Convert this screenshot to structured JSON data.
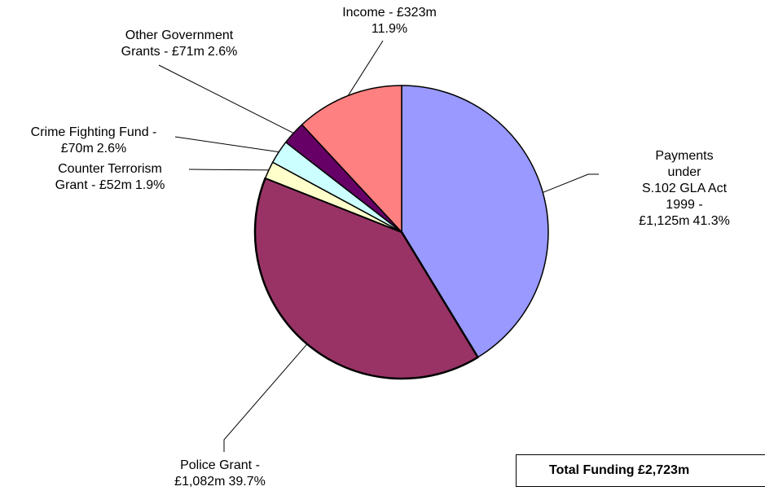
{
  "chart_data": {
    "type": "pie",
    "categories": [
      "Payments under\nS.102 GLA Act 1999 -\n£1,125m",
      "Police Grant -\n£1,082m",
      "Counter Terrorism\nGrant - £52m",
      "Crime Fighting Fund -\n£70m",
      "Other Government\nGrants - £71m",
      "Income - £323m"
    ],
    "values": [
      41.3,
      39.7,
      1.9,
      2.6,
      2.6,
      11.9
    ],
    "value_labels": [
      "41.3%",
      "39.7%",
      "1.9%",
      "2.6%",
      "2.6%",
      "11.9%"
    ],
    "colors": [
      "#9999ff",
      "#993366",
      "#ffffcc",
      "#ccffff",
      "#660066",
      "#ff8080"
    ],
    "annotation": "Total Funding £2,723m"
  }
}
